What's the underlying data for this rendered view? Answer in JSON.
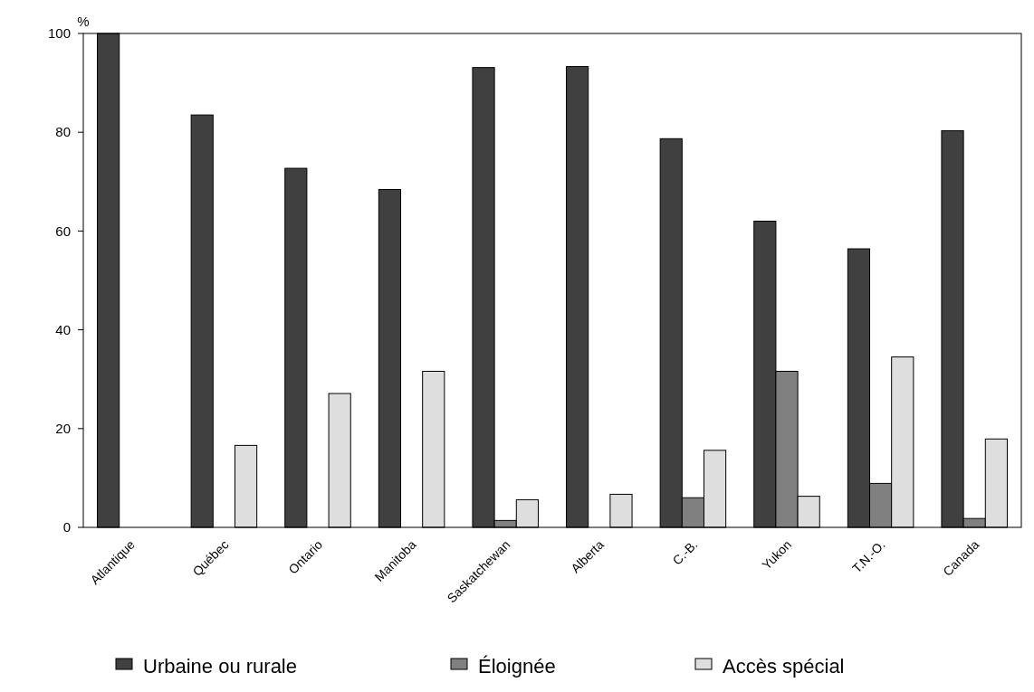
{
  "chart_data": {
    "type": "bar",
    "ylabel": "%",
    "categories": [
      "Atlantique",
      "Québec",
      "Ontario",
      "Manitoba",
      "Saskatchewan",
      "Alberta",
      "C.-B.",
      "Yukon",
      "T.N.-O.",
      "Canada"
    ],
    "series": [
      {
        "name": "Urbaine ou rurale",
        "color": "#404040",
        "values": [
          100,
          83.5,
          72.7,
          68.4,
          93.1,
          93.3,
          78.7,
          62.0,
          56.4,
          80.3
        ]
      },
      {
        "name": "Éloignée",
        "color": "#808080",
        "values": [
          0,
          0,
          0,
          0,
          1.4,
          0,
          6.0,
          31.6,
          8.9,
          1.8
        ]
      },
      {
        "name": "Accès spécial",
        "color": "#dedede",
        "values": [
          0,
          16.6,
          27.1,
          31.6,
          5.6,
          6.7,
          15.6,
          6.3,
          34.5,
          17.9
        ]
      }
    ],
    "ylim": [
      0,
      100
    ],
    "yticks": [
      0,
      20,
      40,
      60,
      80,
      100
    ],
    "grid": false,
    "legend": "bottom"
  }
}
